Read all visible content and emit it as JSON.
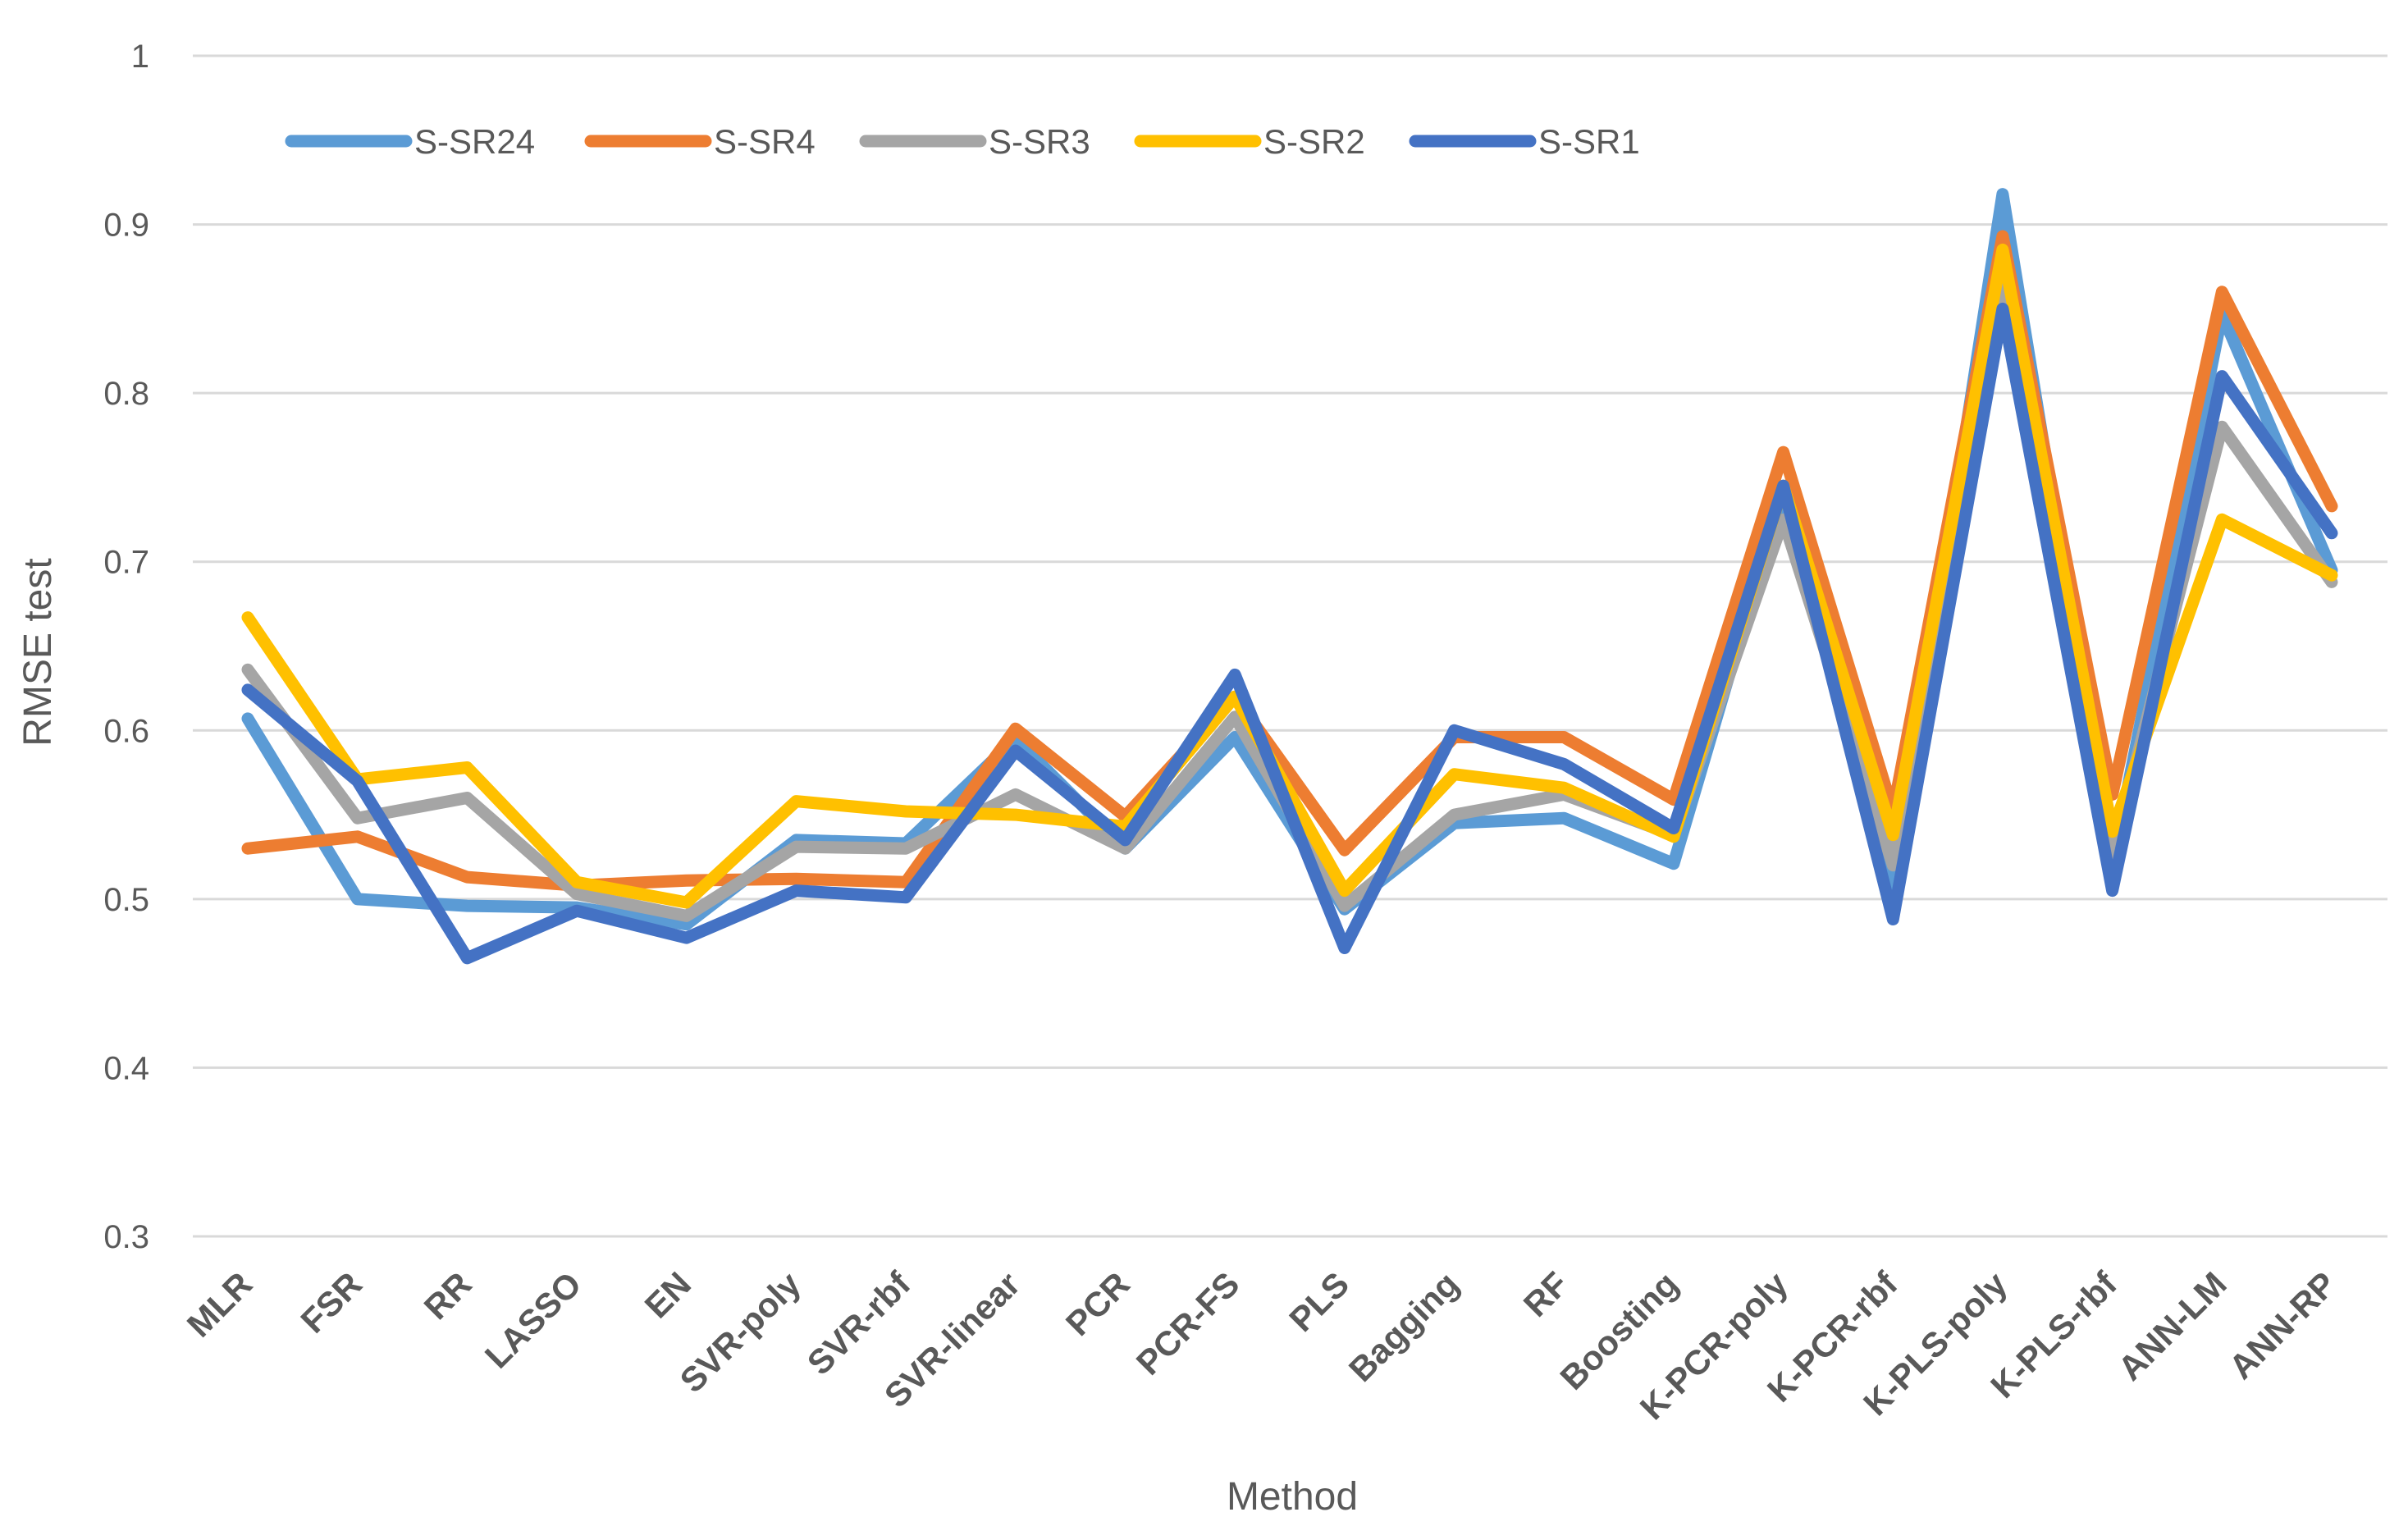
{
  "chart_data": {
    "type": "line",
    "title": "",
    "xlabel": "Method",
    "ylabel": "RMSE test",
    "ylim": [
      0.3,
      1.0
    ],
    "yticks": [
      0.3,
      0.4,
      0.5,
      0.6,
      0.7,
      0.8,
      0.9,
      1
    ],
    "grid": true,
    "legend_position": "top-left",
    "categories": [
      "MLR",
      "FSR",
      "RR",
      "LASSO",
      "EN",
      "SVR-poly",
      "SVR-rbf",
      "SVR-linear",
      "PCR",
      "PCR-FS",
      "PLS",
      "Bagging",
      "RF",
      "Boosting",
      "K-PCR-poly",
      "K-PCR-rbf",
      "K-PLS-poly",
      "K-PLS-rbf",
      "ANN-LM",
      "ANN-RP"
    ],
    "series": [
      {
        "name": "S-SR24",
        "color": "#5B9BD5",
        "values": [
          0.607,
          0.5,
          0.496,
          0.495,
          0.485,
          0.535,
          0.533,
          0.595,
          0.53,
          0.596,
          0.494,
          0.545,
          0.548,
          0.521,
          0.742,
          0.5,
          0.918,
          0.52,
          0.847,
          0.695
        ]
      },
      {
        "name": "S-SR4",
        "color": "#ED7D31",
        "values": [
          0.53,
          0.537,
          0.513,
          0.508,
          0.511,
          0.512,
          0.51,
          0.601,
          0.549,
          0.62,
          0.529,
          0.596,
          0.596,
          0.559,
          0.765,
          0.552,
          0.893,
          0.562,
          0.86,
          0.733
        ]
      },
      {
        "name": "S-SR3",
        "color": "#A5A5A5",
        "values": [
          0.636,
          0.548,
          0.56,
          0.503,
          0.49,
          0.531,
          0.53,
          0.562,
          0.53,
          0.608,
          0.496,
          0.55,
          0.562,
          0.538,
          0.725,
          0.52,
          0.872,
          0.527,
          0.78,
          0.688
        ]
      },
      {
        "name": "S-SR2",
        "color": "#FFC000",
        "values": [
          0.667,
          0.571,
          0.578,
          0.51,
          0.498,
          0.558,
          0.552,
          0.55,
          0.543,
          0.62,
          0.505,
          0.574,
          0.566,
          0.537,
          0.745,
          0.538,
          0.885,
          0.54,
          0.725,
          0.692
        ]
      },
      {
        "name": "S-SR1",
        "color": "#4472C4",
        "values": [
          0.624,
          0.57,
          0.465,
          0.493,
          0.477,
          0.505,
          0.501,
          0.588,
          0.535,
          0.633,
          0.471,
          0.6,
          0.58,
          0.542,
          0.745,
          0.488,
          0.85,
          0.505,
          0.81,
          0.717
        ]
      }
    ]
  }
}
